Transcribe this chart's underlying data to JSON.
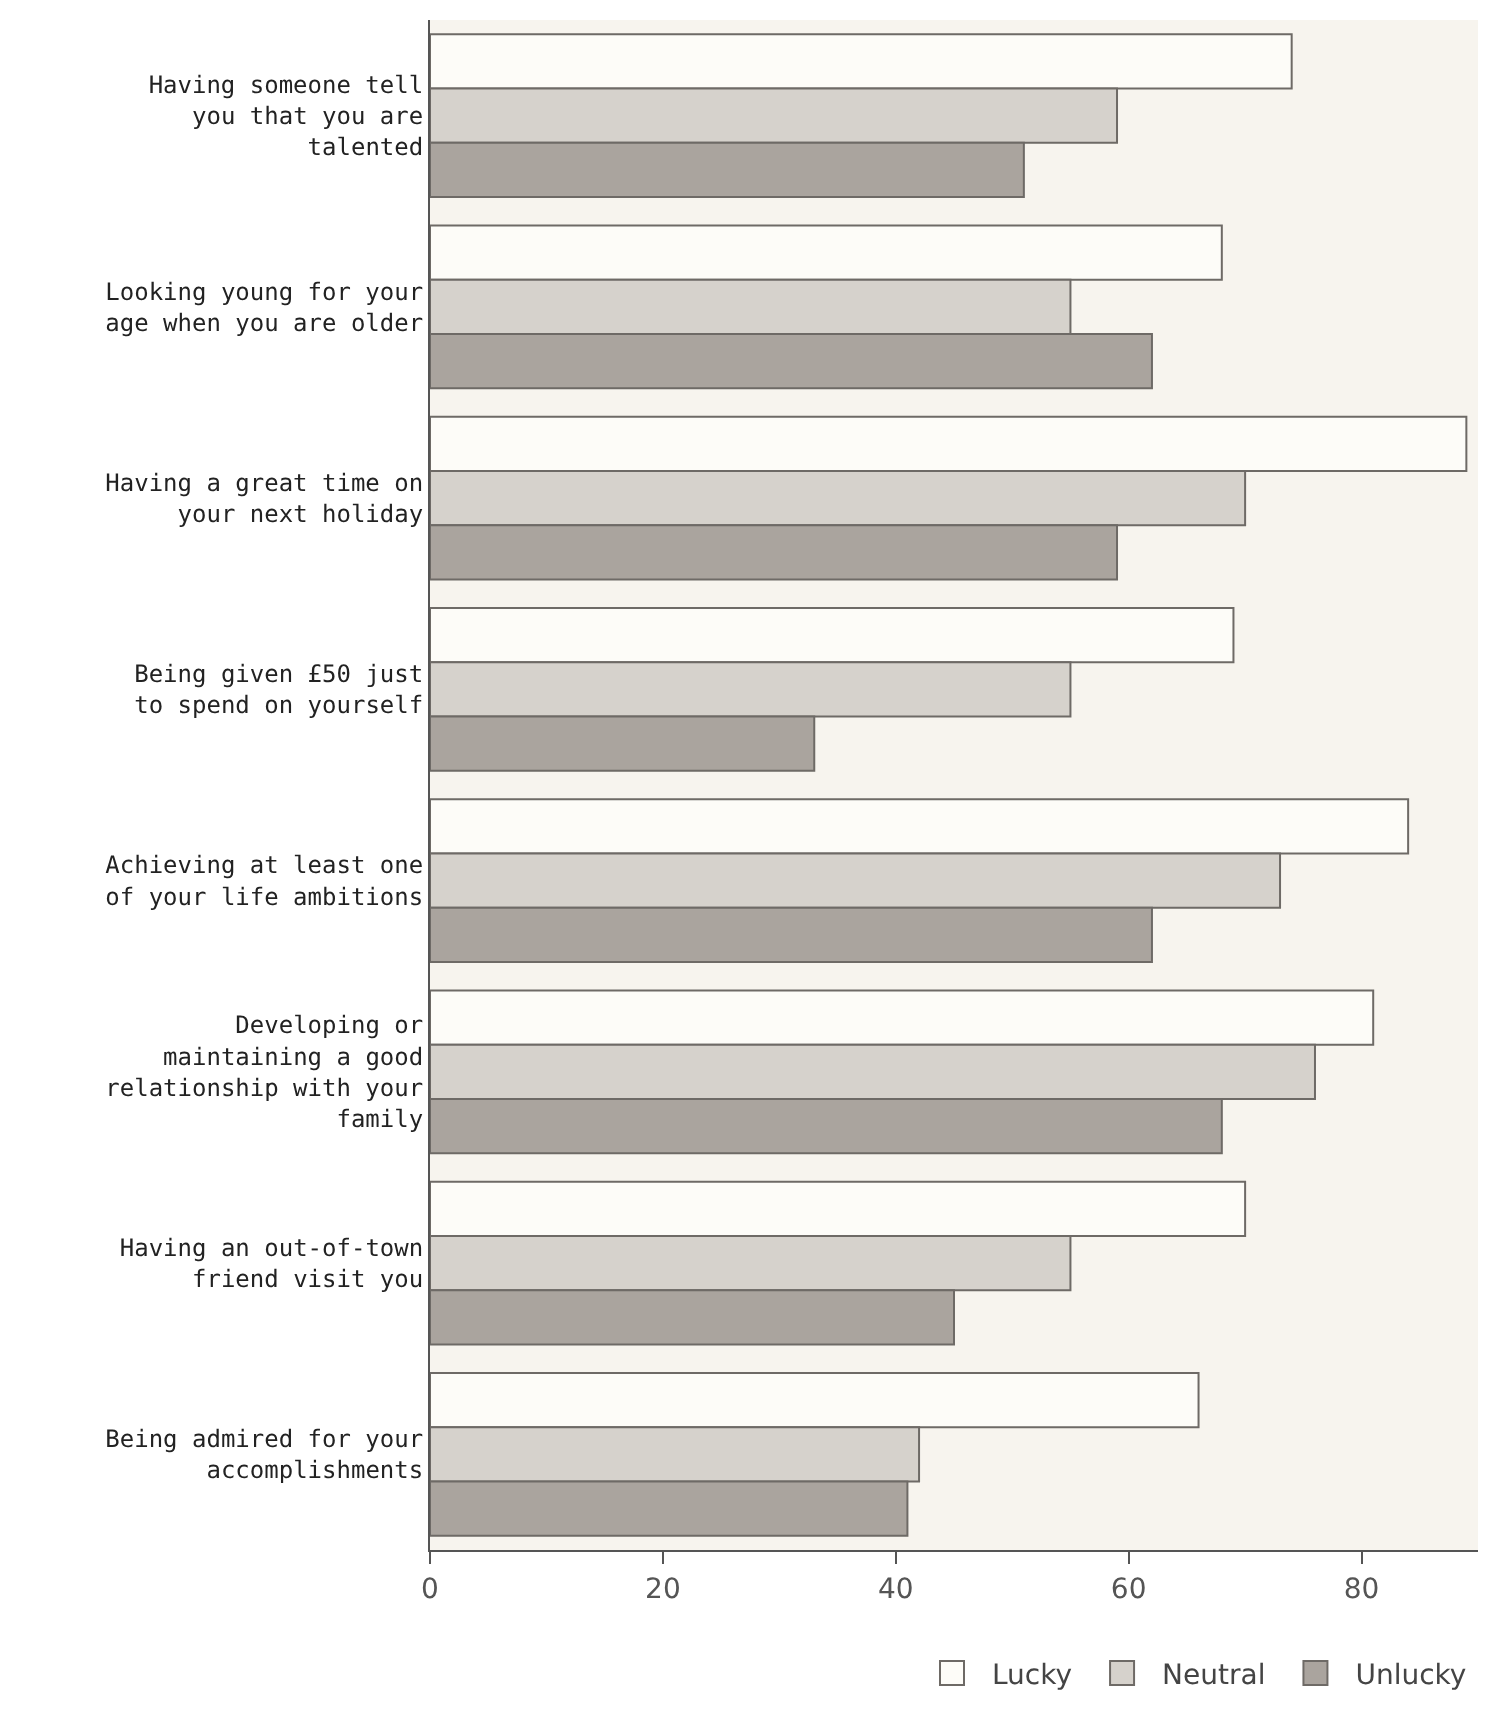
{
  "chart_data": {
    "type": "bar",
    "orientation": "horizontal",
    "categories": [
      "Having someone tell you that you are talented",
      "Looking young for your age when you are older",
      "Having a great time on your next holiday",
      "Being given £50 just to spend on yourself",
      "Achieving at least one of your life ambitions",
      "Developing or maintaining a good relationship with your family",
      "Having an out-of-town friend visit you",
      "Being admired for your accomplishments"
    ],
    "series": [
      {
        "name": "Lucky",
        "color": "#fdfcf8",
        "values": [
          74,
          68,
          89,
          69,
          84,
          81,
          70,
          66
        ]
      },
      {
        "name": "Neutral",
        "color": "#d6d2cc",
        "values": [
          59,
          55,
          70,
          55,
          73,
          76,
          55,
          42
        ]
      },
      {
        "name": "Unlucky",
        "color": "#aaa49e",
        "values": [
          51,
          62,
          59,
          33,
          62,
          68,
          45,
          41
        ]
      }
    ],
    "xlim": [
      0,
      90
    ],
    "xticks": [
      0,
      20,
      40,
      60,
      80
    ],
    "grid": false,
    "legend": "bottom right"
  }
}
